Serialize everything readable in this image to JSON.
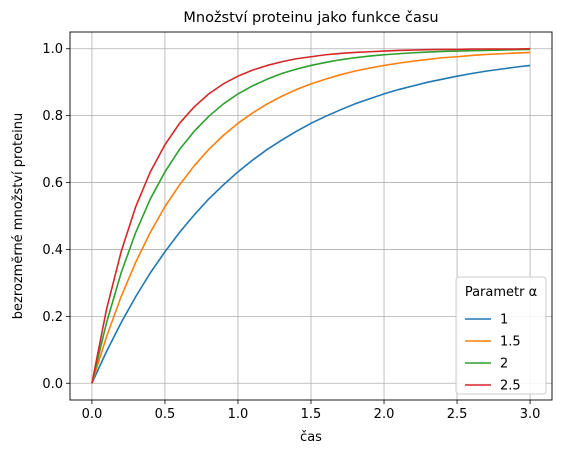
{
  "chart_data": {
    "type": "line",
    "title": "Množství proteinu jako funkce času",
    "xlabel": "čas",
    "ylabel": "bezrozměrné množství proteinu",
    "xlim": [
      -0.15,
      3.15
    ],
    "ylim": [
      -0.05,
      1.05
    ],
    "xticks": [
      "0.0",
      "0.5",
      "1.0",
      "1.5",
      "2.0",
      "2.5",
      "3.0"
    ],
    "yticks": [
      "0.0",
      "0.2",
      "0.4",
      "0.6",
      "0.8",
      "1.0"
    ],
    "grid": true,
    "legend": {
      "title": "Parametr α",
      "placement": "bottom-right"
    },
    "x": [
      0,
      0.1,
      0.2,
      0.3,
      0.4,
      0.5,
      0.6,
      0.7,
      0.8,
      0.9,
      1.0,
      1.1,
      1.2,
      1.3,
      1.4,
      1.5,
      1.6,
      1.7,
      1.8,
      1.9,
      2.0,
      2.1,
      2.2,
      2.3,
      2.4,
      2.5,
      2.6,
      2.7,
      2.8,
      2.9,
      3.0
    ],
    "series": [
      {
        "name": "1",
        "color": "#1f77b4",
        "values": [
          0.0,
          0.095,
          0.181,
          0.259,
          0.33,
          0.393,
          0.451,
          0.503,
          0.551,
          0.593,
          0.632,
          0.667,
          0.699,
          0.727,
          0.753,
          0.777,
          0.798,
          0.817,
          0.835,
          0.85,
          0.865,
          0.878,
          0.889,
          0.9,
          0.909,
          0.918,
          0.926,
          0.933,
          0.939,
          0.945,
          0.95
        ]
      },
      {
        "name": "1.5",
        "color": "#ff7f0e",
        "values": [
          0.0,
          0.139,
          0.259,
          0.362,
          0.451,
          0.528,
          0.593,
          0.65,
          0.699,
          0.741,
          0.777,
          0.808,
          0.835,
          0.858,
          0.878,
          0.895,
          0.909,
          0.922,
          0.933,
          0.942,
          0.95,
          0.957,
          0.963,
          0.968,
          0.973,
          0.976,
          0.98,
          0.983,
          0.985,
          0.987,
          0.989
        ]
      },
      {
        "name": "2",
        "color": "#2ca02c",
        "values": [
          0.0,
          0.181,
          0.33,
          0.451,
          0.551,
          0.632,
          0.699,
          0.753,
          0.798,
          0.835,
          0.865,
          0.889,
          0.909,
          0.926,
          0.939,
          0.95,
          0.959,
          0.967,
          0.973,
          0.978,
          0.982,
          0.985,
          0.988,
          0.99,
          0.992,
          0.993,
          0.994,
          0.995,
          0.996,
          0.997,
          0.998
        ]
      },
      {
        "name": "2.5",
        "color": "#d62728",
        "values": [
          0.0,
          0.221,
          0.393,
          0.528,
          0.632,
          0.713,
          0.777,
          0.826,
          0.865,
          0.895,
          0.918,
          0.936,
          0.95,
          0.961,
          0.97,
          0.976,
          0.982,
          0.986,
          0.989,
          0.991,
          0.993,
          0.995,
          0.996,
          0.997,
          0.998,
          0.998,
          0.999,
          0.999,
          0.999,
          0.999,
          1.0
        ]
      }
    ]
  }
}
